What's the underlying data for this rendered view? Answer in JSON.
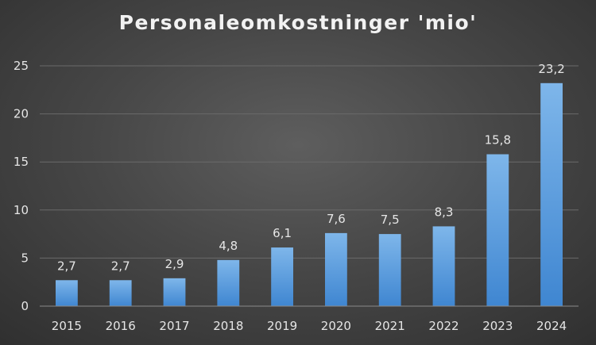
{
  "chart_data": {
    "type": "bar",
    "title": "Personaleomkostninger 'mio'",
    "xlabel": "",
    "ylabel": "",
    "categories": [
      "2015",
      "2016",
      "2017",
      "2018",
      "2019",
      "2020",
      "2021",
      "2022",
      "2023",
      "2024"
    ],
    "values": [
      2.7,
      2.7,
      2.9,
      4.8,
      6.1,
      7.6,
      7.5,
      8.3,
      15.8,
      23.2
    ],
    "data_labels": [
      "2,7",
      "2,7",
      "2,9",
      "4,8",
      "6,1",
      "7,6",
      "7,5",
      "8,3",
      "15,8",
      "23,2"
    ],
    "ylim": [
      0,
      25
    ],
    "yticks": [
      "0",
      "5",
      "10",
      "15",
      "20",
      "25"
    ],
    "grid": true,
    "legend": "none",
    "colors": {
      "bar_top": "#7eb6ea",
      "bar_bottom": "#3f86d1",
      "background": "#474747"
    }
  }
}
